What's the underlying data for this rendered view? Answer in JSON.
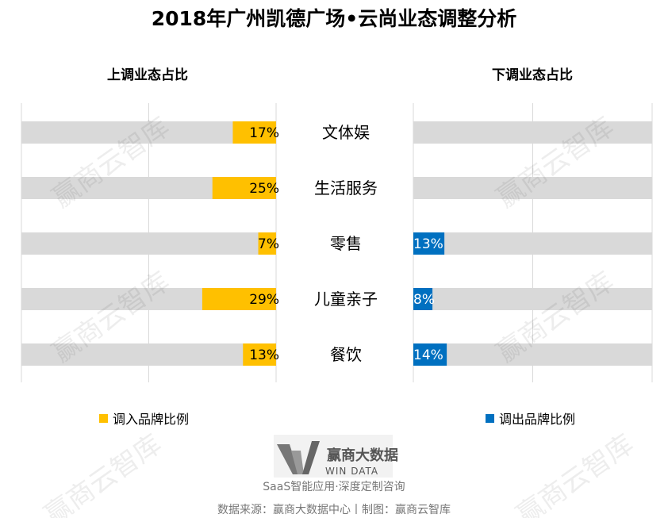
{
  "title": "2018年广州凯德广场•云尚业态调整分析",
  "watermark": "赢商云智库",
  "colors": {
    "up": "#FFC000",
    "down": "#0070C0",
    "track": "#D9D9D9",
    "grid": "#D9D9D9"
  },
  "chart_data": [
    {
      "type": "bar",
      "orientation": "horizontal-reversed",
      "title": "上调业态占比",
      "categories": [
        "文体娱",
        "生活服务",
        "零售",
        "儿童亲子",
        "餐饮"
      ],
      "series": [
        {
          "name": "调入品牌比例",
          "values": [
            17,
            25,
            7,
            29,
            13
          ]
        }
      ],
      "xlim": [
        0,
        100
      ],
      "unit": "%",
      "grid": true,
      "legend": "bottom-left"
    },
    {
      "type": "bar",
      "orientation": "horizontal",
      "title": "下调业态占比",
      "categories": [
        "文体娱",
        "生活服务",
        "零售",
        "儿童亲子",
        "餐饮"
      ],
      "series": [
        {
          "name": "调出品牌比例",
          "values": [
            null,
            null,
            13,
            8,
            14
          ]
        }
      ],
      "xlim": [
        0,
        100
      ],
      "unit": "%",
      "grid": true,
      "legend": "bottom-right"
    }
  ],
  "logo": {
    "cn": "赢商大数据",
    "en": "WIN DATA"
  },
  "slogan": "SaaS智能应用·深度定制咨询",
  "footer": "数据来源：赢商大数据中心丨制图：赢商云智库"
}
